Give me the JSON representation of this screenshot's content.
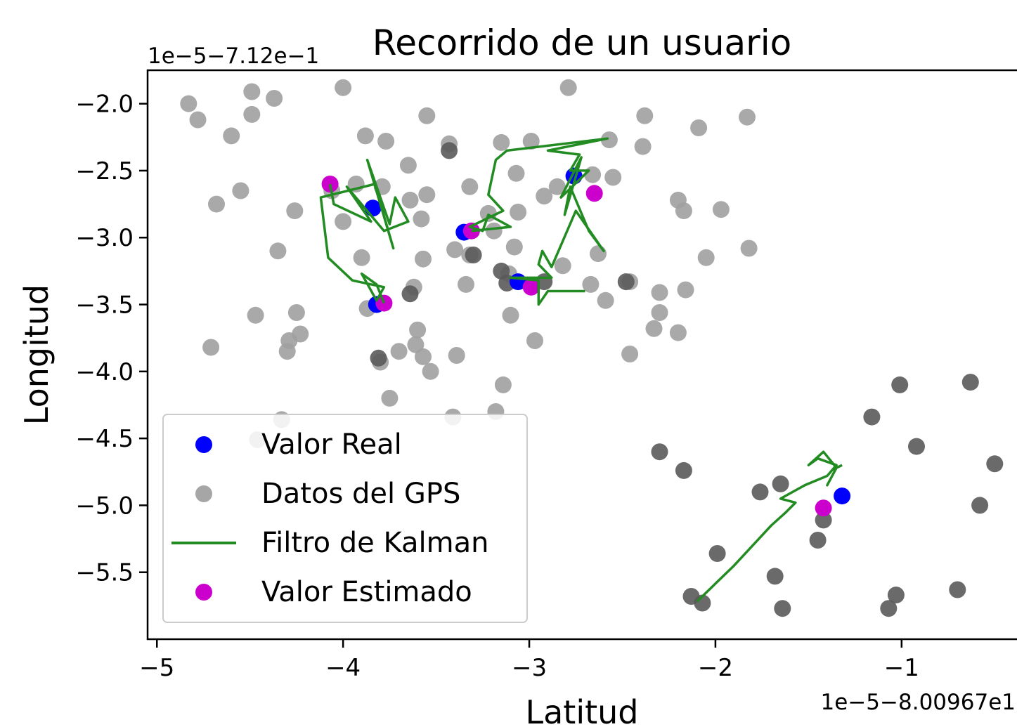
{
  "chart_data": {
    "type": "scatter",
    "title": "Recorrido de un usuario",
    "xlabel": "Latitud",
    "ylabel": "Longitud",
    "x_offset_label": "1e−5−8.00967e1",
    "y_offset_label": "1e−5−7.12e−1",
    "xlim": [
      -5.05,
      -0.35
    ],
    "ylim": [
      -6.0,
      -1.75
    ],
    "x_ticks": [
      -5,
      -4,
      -3,
      -2,
      -1
    ],
    "x_tick_labels": [
      "−5",
      "−4",
      "−3",
      "−2",
      "−1"
    ],
    "y_ticks": [
      -2.0,
      -2.5,
      -3.0,
      -3.5,
      -4.0,
      -4.5,
      -5.0,
      -5.5
    ],
    "y_tick_labels": [
      "−2.0",
      "−2.5",
      "−3.0",
      "−3.5",
      "−4.0",
      "−4.5",
      "−5.0",
      "−5.5"
    ],
    "grid": false,
    "legend_position": "lower-left",
    "legend": [
      {
        "label": "Valor Real",
        "marker": "dot",
        "color": "#0000ff"
      },
      {
        "label": "Datos del GPS",
        "marker": "dot",
        "color": "#a6a6a6"
      },
      {
        "label": "Filtro de Kalman",
        "marker": "line",
        "color": "#228b22"
      },
      {
        "label": "Valor Estimado",
        "marker": "dot",
        "color": "#cc00cc"
      }
    ],
    "series": [
      {
        "name": "Datos del GPS",
        "color": "#a0a0a0",
        "points": [
          [
            -4.83,
            -2.0
          ],
          [
            -4.78,
            -2.12
          ],
          [
            -4.49,
            -1.91
          ],
          [
            -4.49,
            -2.08
          ],
          [
            -4.37,
            -1.96
          ],
          [
            -4.0,
            -1.88
          ],
          [
            -3.77,
            -2.28
          ],
          [
            -3.88,
            -2.24
          ],
          [
            -3.55,
            -2.09
          ],
          [
            -3.43,
            -2.3
          ],
          [
            -3.15,
            -2.29
          ],
          [
            -2.99,
            -2.28
          ],
          [
            -2.79,
            -1.88
          ],
          [
            -2.57,
            -2.27
          ],
          [
            -2.38,
            -2.09
          ],
          [
            -2.39,
            -2.32
          ],
          [
            -2.09,
            -2.18
          ],
          [
            -1.83,
            -2.1
          ],
          [
            -4.6,
            -2.24
          ],
          [
            -4.55,
            -2.65
          ],
          [
            -4.68,
            -2.75
          ],
          [
            -4.26,
            -2.8
          ],
          [
            -3.93,
            -2.6
          ],
          [
            -3.79,
            -2.62
          ],
          [
            -4.0,
            -2.88
          ],
          [
            -3.65,
            -2.46
          ],
          [
            -3.64,
            -2.72
          ],
          [
            -3.55,
            -2.68
          ],
          [
            -3.58,
            -2.86
          ],
          [
            -3.32,
            -2.62
          ],
          [
            -3.22,
            -2.82
          ],
          [
            -3.19,
            -2.95
          ],
          [
            -3.07,
            -2.52
          ],
          [
            -3.06,
            -2.81
          ],
          [
            -2.92,
            -2.69
          ],
          [
            -2.85,
            -2.62
          ],
          [
            -2.55,
            -2.55
          ],
          [
            -2.2,
            -2.72
          ],
          [
            -2.17,
            -2.8
          ],
          [
            -1.97,
            -2.79
          ],
          [
            -4.35,
            -3.1
          ],
          [
            -3.9,
            -3.15
          ],
          [
            -3.57,
            -3.16
          ],
          [
            -3.4,
            -3.09
          ],
          [
            -3.32,
            -3.13
          ],
          [
            -3.08,
            -3.07
          ],
          [
            -2.82,
            -3.21
          ],
          [
            -2.63,
            -3.12
          ],
          [
            -2.05,
            -3.15
          ],
          [
            -1.82,
            -3.08
          ],
          [
            -3.62,
            -3.37
          ],
          [
            -3.34,
            -3.35
          ],
          [
            -3.11,
            -3.27
          ],
          [
            -2.67,
            -3.35
          ],
          [
            -2.46,
            -3.33
          ],
          [
            -2.59,
            -3.47
          ],
          [
            -2.3,
            -3.41
          ],
          [
            -2.3,
            -3.56
          ],
          [
            -2.16,
            -3.39
          ],
          [
            -4.47,
            -3.58
          ],
          [
            -4.25,
            -3.56
          ],
          [
            -4.23,
            -3.72
          ],
          [
            -4.29,
            -3.77
          ],
          [
            -3.7,
            -3.85
          ],
          [
            -3.61,
            -3.8
          ],
          [
            -3.6,
            -3.69
          ],
          [
            -3.57,
            -3.89
          ],
          [
            -3.53,
            -4.0
          ],
          [
            -3.39,
            -3.88
          ],
          [
            -3.1,
            -3.58
          ],
          [
            -2.97,
            -3.77
          ],
          [
            -2.33,
            -3.68
          ],
          [
            -2.2,
            -3.71
          ],
          [
            -2.46,
            -3.87
          ],
          [
            -4.71,
            -3.82
          ],
          [
            -4.3,
            -3.85
          ],
          [
            -3.8,
            -3.93
          ],
          [
            -3.75,
            -4.2
          ],
          [
            -3.14,
            -4.1
          ],
          [
            -3.18,
            -4.3
          ],
          [
            -3.41,
            -4.34
          ],
          [
            -4.33,
            -4.36
          ],
          [
            -4.46,
            -4.51
          ],
          [
            -2.66,
            -2.53
          ],
          [
            -3.87,
            -3.53
          ],
          [
            -4.06,
            -2.65
          ]
        ]
      },
      {
        "name": "Datos del GPS",
        "color": "#5a5a5a",
        "points": [
          [
            -3.43,
            -2.35
          ],
          [
            -3.15,
            -3.25
          ],
          [
            -3.12,
            -3.34
          ],
          [
            -3.64,
            -3.42
          ],
          [
            -3.81,
            -3.9
          ],
          [
            -3.3,
            -3.13
          ],
          [
            -2.92,
            -3.33
          ],
          [
            -2.48,
            -3.33
          ],
          [
            -2.3,
            -4.6
          ],
          [
            -2.17,
            -4.74
          ],
          [
            -1.16,
            -4.34
          ],
          [
            -1.01,
            -4.1
          ],
          [
            -0.63,
            -4.08
          ],
          [
            -0.92,
            -4.56
          ],
          [
            -0.5,
            -4.69
          ],
          [
            -1.76,
            -4.9
          ],
          [
            -1.65,
            -4.84
          ],
          [
            -1.42,
            -5.11
          ],
          [
            -1.45,
            -5.26
          ],
          [
            -1.99,
            -5.36
          ],
          [
            -0.58,
            -5.0
          ],
          [
            -2.13,
            -5.68
          ],
          [
            -2.07,
            -5.73
          ],
          [
            -1.68,
            -5.53
          ],
          [
            -1.64,
            -5.77
          ],
          [
            -1.03,
            -5.67
          ],
          [
            -1.07,
            -5.77
          ],
          [
            -0.7,
            -5.63
          ]
        ]
      },
      {
        "name": "Valor Real",
        "color": "#0000ff",
        "points": [
          [
            -3.84,
            -2.78
          ],
          [
            -2.76,
            -2.54
          ],
          [
            -3.35,
            -2.96
          ],
          [
            -3.06,
            -3.33
          ],
          [
            -3.82,
            -3.5
          ],
          [
            -1.32,
            -4.93
          ]
        ]
      },
      {
        "name": "Valor Estimado",
        "color": "#cc00cc",
        "points": [
          [
            -4.07,
            -2.6
          ],
          [
            -2.65,
            -2.67
          ],
          [
            -3.31,
            -2.95
          ],
          [
            -2.99,
            -3.37
          ],
          [
            -3.78,
            -3.49
          ],
          [
            -1.42,
            -5.02
          ]
        ]
      },
      {
        "name": "Filtro de Kalman",
        "color": "#228b22",
        "line": [
          [
            [
              -4.07,
              -2.6
            ],
            [
              -4.05,
              -2.75
            ],
            [
              -3.85,
              -2.88
            ],
            [
              -3.98,
              -2.62
            ],
            [
              -3.78,
              -2.95
            ],
            [
              -3.65,
              -2.88
            ],
            [
              -3.72,
              -2.7
            ],
            [
              -3.75,
              -2.9
            ],
            [
              -3.87,
              -2.42
            ],
            [
              -3.73,
              -3.08
            ],
            [
              -3.83,
              -2.6
            ],
            [
              -4.12,
              -2.7
            ],
            [
              -4.08,
              -3.15
            ],
            [
              -3.95,
              -3.32
            ],
            [
              -3.78,
              -3.37
            ],
            [
              -3.82,
              -3.47
            ],
            [
              -3.9,
              -3.27
            ],
            [
              -3.82,
              -3.35
            ],
            [
              -3.78,
              -3.49
            ]
          ],
          [
            [
              -3.31,
              -2.95
            ],
            [
              -3.1,
              -2.92
            ],
            [
              -3.22,
              -2.83
            ],
            [
              -3.25,
              -2.95
            ],
            [
              -3.32,
              -2.92
            ],
            [
              -3.14,
              -2.8
            ],
            [
              -3.22,
              -2.68
            ],
            [
              -3.18,
              -2.42
            ],
            [
              -3.12,
              -2.35
            ],
            [
              -2.58,
              -2.26
            ],
            [
              -2.9,
              -2.35
            ],
            [
              -2.73,
              -2.38
            ],
            [
              -2.78,
              -2.5
            ],
            [
              -2.68,
              -2.5
            ],
            [
              -2.83,
              -2.7
            ],
            [
              -2.72,
              -2.4
            ],
            [
              -2.81,
              -2.83
            ],
            [
              -2.78,
              -2.62
            ],
            [
              -2.68,
              -2.95
            ],
            [
              -2.6,
              -3.1
            ],
            [
              -2.75,
              -2.8
            ],
            [
              -2.88,
              -3.22
            ],
            [
              -2.93,
              -3.1
            ],
            [
              -2.95,
              -3.2
            ],
            [
              -2.88,
              -3.3
            ],
            [
              -3.1,
              -3.3
            ],
            [
              -2.95,
              -3.32
            ],
            [
              -2.95,
              -3.5
            ],
            [
              -2.9,
              -3.4
            ],
            [
              -2.7,
              -3.4
            ]
          ],
          [
            [
              -2.1,
              -5.72
            ],
            [
              -1.9,
              -5.45
            ],
            [
              -1.7,
              -5.15
            ],
            [
              -1.62,
              -5.05
            ],
            [
              -1.57,
              -4.98
            ],
            [
              -1.65,
              -4.95
            ],
            [
              -1.52,
              -4.85
            ],
            [
              -1.4,
              -4.78
            ],
            [
              -1.35,
              -4.7
            ],
            [
              -1.45,
              -4.65
            ],
            [
              -1.5,
              -4.7
            ],
            [
              -1.42,
              -4.6
            ],
            [
              -1.35,
              -4.72
            ],
            [
              -1.4,
              -4.85
            ],
            [
              -1.35,
              -4.72
            ],
            [
              -1.32,
              -4.7
            ]
          ]
        ]
      }
    ]
  }
}
